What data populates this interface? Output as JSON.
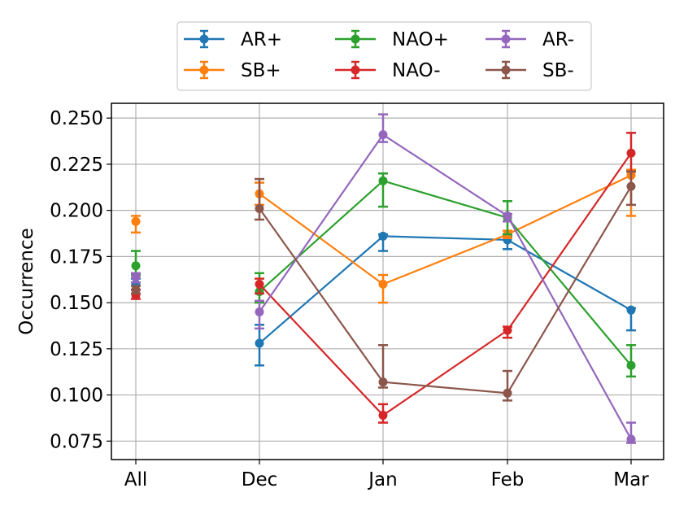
{
  "chart_data": {
    "type": "line",
    "title": "",
    "xlabel": "",
    "ylabel": "Occurrence",
    "categories": [
      "All",
      "Dec",
      "Jan",
      "Feb",
      "Mar"
    ],
    "ylim": [
      0.065,
      0.258
    ],
    "yticks": [
      "0.075",
      "0.100",
      "0.125",
      "0.150",
      "0.175",
      "0.200",
      "0.225",
      "0.250"
    ],
    "grid": true,
    "error_bars": true,
    "legend_position": "top-center",
    "series": [
      {
        "name": "AR+",
        "color": "#1f77b4",
        "values": [
          0.16,
          0.128,
          0.186,
          0.184,
          0.146
        ],
        "err_low": [
          0.157,
          0.116,
          0.178,
          0.179,
          0.135
        ],
        "err_high": [
          0.163,
          0.138,
          0.187,
          0.186,
          0.147
        ]
      },
      {
        "name": "SB+",
        "color": "#ff7f0e",
        "values": [
          0.194,
          0.209,
          0.16,
          0.187,
          0.219
        ],
        "err_low": [
          0.188,
          0.203,
          0.15,
          0.185,
          0.197
        ],
        "err_high": [
          0.197,
          0.215,
          0.165,
          0.189,
          0.222
        ]
      },
      {
        "name": "NAO+",
        "color": "#2ca02c",
        "values": [
          0.17,
          0.156,
          0.216,
          0.196,
          0.116
        ],
        "err_low": [
          0.165,
          0.15,
          0.202,
          0.187,
          0.11
        ],
        "err_high": [
          0.178,
          0.166,
          0.22,
          0.205,
          0.127
        ]
      },
      {
        "name": "NAO-",
        "color": "#d62728",
        "values": [
          0.154,
          0.16,
          0.089,
          0.135,
          0.231
        ],
        "err_low": [
          0.152,
          0.155,
          0.085,
          0.131,
          0.221
        ],
        "err_high": [
          0.157,
          0.163,
          0.095,
          0.137,
          0.242
        ]
      },
      {
        "name": "AR-",
        "color": "#9467bd",
        "values": [
          0.164,
          0.145,
          0.241,
          0.197,
          0.076
        ],
        "err_low": [
          0.161,
          0.136,
          0.237,
          0.194,
          0.074
        ],
        "err_high": [
          0.166,
          0.151,
          0.252,
          0.198,
          0.085
        ]
      },
      {
        "name": "SB-",
        "color": "#8c564b",
        "values": [
          0.157,
          0.201,
          0.107,
          0.101,
          0.213
        ],
        "err_low": [
          0.155,
          0.195,
          0.104,
          0.097,
          0.203
        ],
        "err_high": [
          0.159,
          0.217,
          0.127,
          0.113,
          0.221
        ]
      }
    ]
  }
}
